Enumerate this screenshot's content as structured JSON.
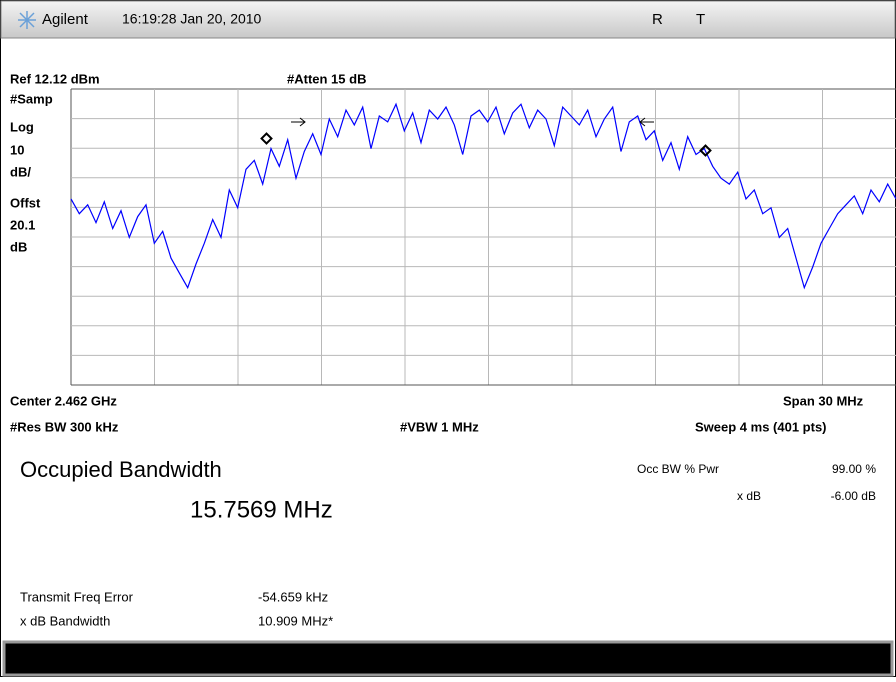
{
  "header": {
    "brand": "Agilent",
    "timestamp": "16:19:28  Jan 20, 2010",
    "status": [
      "R",
      "T"
    ]
  },
  "settings": {
    "ref": "Ref 12.12 dBm",
    "atten": "#Atten 15 dB",
    "left_labels": [
      "#Samp",
      "Log",
      "10",
      "dB/",
      "Offst",
      "20.1",
      "dB"
    ]
  },
  "footer": {
    "center": "Center 2.462 GHz",
    "span": "Span 30 MHz",
    "res_bw": "#Res BW 300 kHz",
    "vbw": "#VBW 1 MHz",
    "sweep": "Sweep 4 ms (401 pts)"
  },
  "results": {
    "title": "Occupied Bandwidth",
    "value": "15.7569 MHz",
    "params": [
      {
        "label": "Occ BW % Pwr",
        "value": "99.00 %"
      },
      {
        "label": "x dB",
        "value": "-6.00 dB"
      }
    ],
    "errors": [
      {
        "label": "Transmit Freq Error",
        "value": "-54.659 kHz"
      },
      {
        "label": "x dB Bandwidth",
        "value": "10.909 MHz*"
      }
    ]
  },
  "trace": {
    "ylim": [
      -87.88,
      12.12
    ],
    "color": "#0000ff",
    "values": [
      -25,
      -30,
      -27,
      -33,
      -26,
      -35,
      -29,
      -38,
      -31,
      -27,
      -40,
      -36,
      -45,
      -50,
      -55,
      -47,
      -40,
      -32,
      -38,
      -22,
      -28,
      -15,
      -12,
      -20,
      -8,
      -14,
      -5,
      -18,
      -9,
      -3,
      -10,
      2,
      -4,
      5,
      0,
      6,
      -8,
      3,
      1,
      7,
      -2,
      4,
      -6,
      5,
      2,
      6,
      0,
      -10,
      3,
      5,
      1,
      6,
      -3,
      4,
      7,
      -1,
      5,
      2,
      -7,
      6,
      3,
      0,
      5,
      -4,
      2,
      6,
      -9,
      1,
      3,
      -5,
      -2,
      -12,
      -6,
      -15,
      -4,
      -10,
      -8,
      -14,
      -18,
      -20,
      -16,
      -25,
      -22,
      -30,
      -28,
      -38,
      -35,
      -45,
      -55,
      -48,
      -40,
      -35,
      -30,
      -27,
      -24,
      -30,
      -22,
      -26,
      -20,
      -25
    ]
  }
}
